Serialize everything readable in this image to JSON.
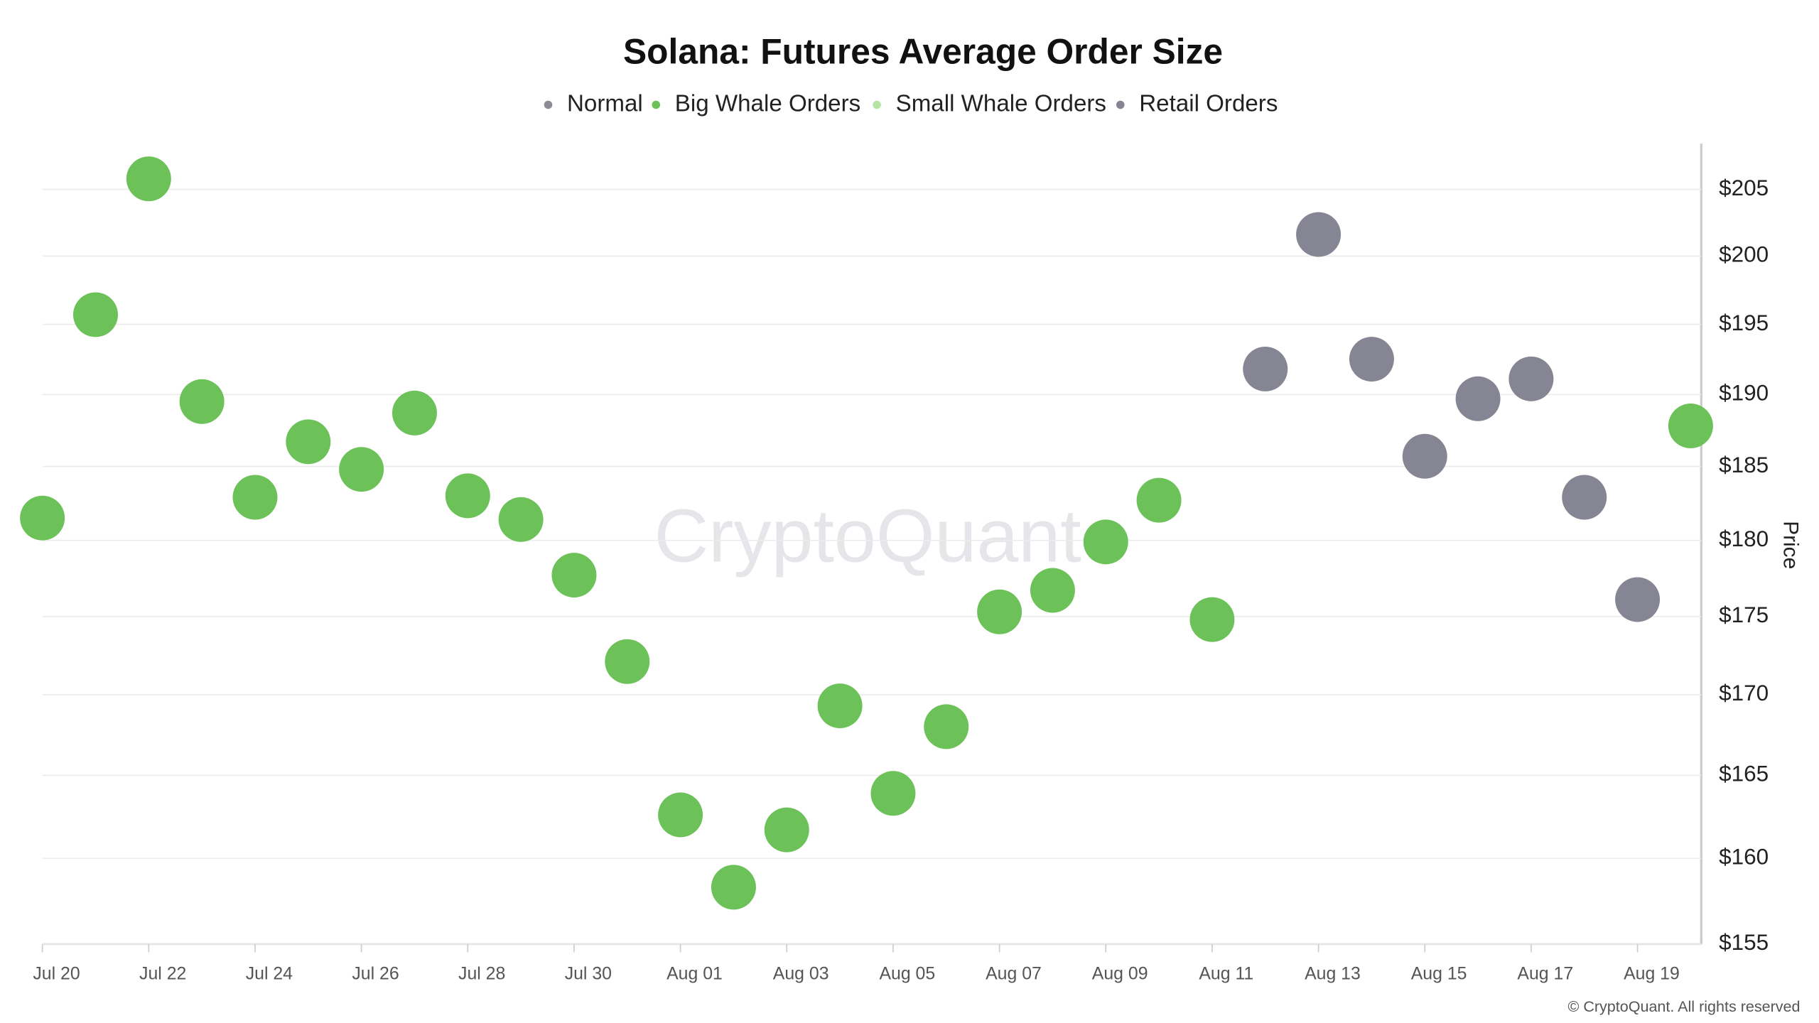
{
  "chart_data": {
    "type": "scatter",
    "title": "Solana: Futures Average Order Size",
    "y_label": "Price",
    "watermark": "CryptoQuant",
    "footer": "© CryptoQuant. All rights reserved",
    "categories": [
      "Jul 20",
      null,
      "Jul 22",
      null,
      "Jul 24",
      null,
      "Jul 26",
      null,
      "Jul 28",
      null,
      "Jul 30",
      null,
      "Aug 01",
      null,
      "Aug 03",
      null,
      "Aug 05",
      null,
      "Aug 07",
      null,
      "Aug 09",
      null,
      "Aug 11",
      null,
      "Aug 13",
      null,
      "Aug 15",
      null,
      "Aug 17",
      null,
      "Aug 19",
      null
    ],
    "series": [
      {
        "name": "Normal",
        "color": "#8c8c96",
        "values": [
          null,
          null,
          null,
          null,
          null,
          null,
          null,
          null,
          null,
          null,
          null,
          null,
          null,
          null,
          null,
          null,
          null,
          null,
          null,
          null,
          null,
          null,
          null,
          null,
          null,
          null,
          null,
          null,
          null,
          null,
          null,
          null
        ]
      },
      {
        "name": "Big Whale Orders",
        "color": "#6cc159",
        "values": [
          181.5,
          195.7,
          205.8,
          189.5,
          182.9,
          186.7,
          184.8,
          188.7,
          183.0,
          181.4,
          177.7,
          172.1,
          162.6,
          158.3,
          161.7,
          169.3,
          163.9,
          168.0,
          175.3,
          176.7,
          179.9,
          182.7,
          174.8,
          null,
          null,
          null,
          null,
          null,
          null,
          null,
          null,
          187.8
        ]
      },
      {
        "name": "Small Whale Orders",
        "color": "#b5e3a5",
        "values": [
          null,
          null,
          null,
          null,
          null,
          null,
          null,
          null,
          null,
          null,
          null,
          null,
          null,
          null,
          null,
          null,
          null,
          null,
          null,
          null,
          null,
          null,
          null,
          null,
          null,
          null,
          null,
          null,
          null,
          null,
          null,
          null
        ]
      },
      {
        "name": "Retail Orders",
        "color": "#858593",
        "values": [
          null,
          null,
          null,
          null,
          null,
          null,
          null,
          null,
          null,
          null,
          null,
          null,
          null,
          null,
          null,
          null,
          null,
          null,
          null,
          null,
          null,
          null,
          null,
          191.8,
          201.6,
          192.5,
          185.7,
          189.7,
          191.1,
          182.9,
          176.1,
          null
        ]
      }
    ],
    "ylim": [
      155,
      208.5
    ],
    "log_y": true,
    "grid": true,
    "yticks": [
      {
        "value": 155,
        "label": "$155"
      },
      {
        "value": 160,
        "label": "$160"
      },
      {
        "value": 165,
        "label": "$165"
      },
      {
        "value": 170,
        "label": "$170"
      },
      {
        "value": 175,
        "label": "$175"
      },
      {
        "value": 180,
        "label": "$180"
      },
      {
        "value": 185,
        "label": "$185"
      },
      {
        "value": 190,
        "label": "$190"
      },
      {
        "value": 195,
        "label": "$195"
      },
      {
        "value": 200,
        "label": "$200"
      },
      {
        "value": 205,
        "label": "$205"
      }
    ]
  }
}
